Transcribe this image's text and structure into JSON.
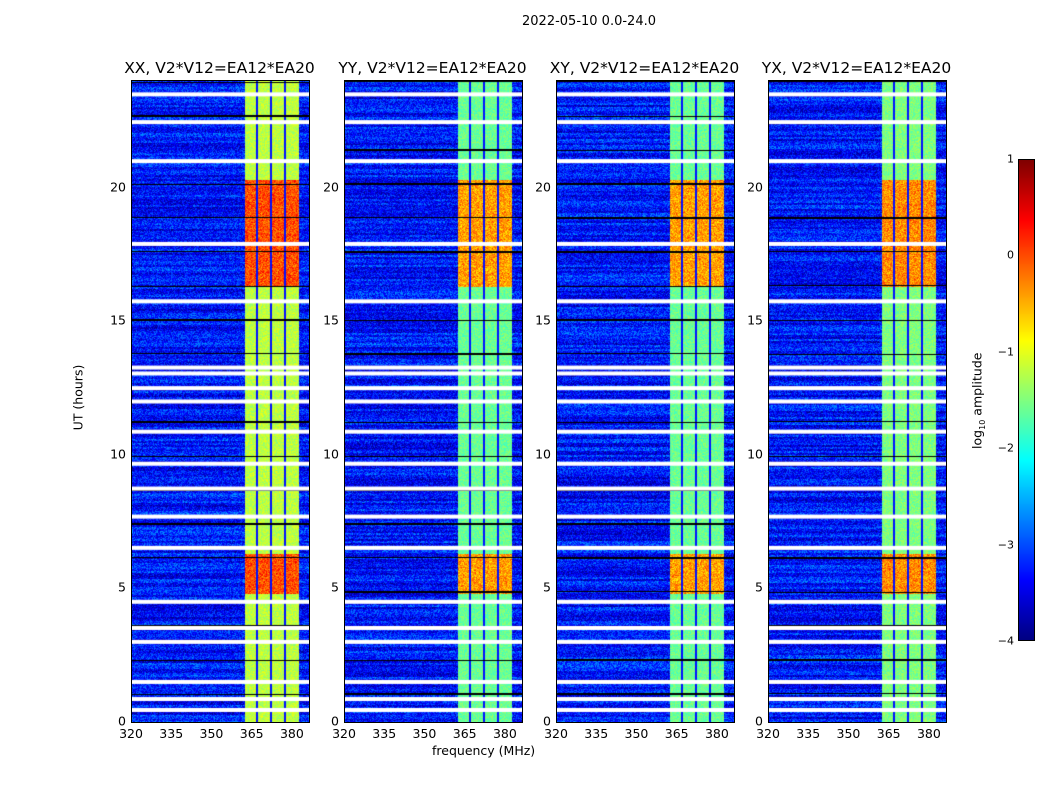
{
  "figure_title": "2022-05-10 0.0-24.0",
  "chart_data": {
    "type": "heatmap",
    "title": "2022-05-10 0.0-24.0",
    "xlabel": "frequency (MHz)",
    "ylabel": "UT (hours)",
    "xlim": [
      320,
      386
    ],
    "ylim": [
      0,
      24
    ],
    "xticks": [
      "320",
      "335",
      "350",
      "365",
      "380"
    ],
    "xtick_values": [
      320,
      335,
      350,
      365,
      380
    ],
    "yticks": [
      "0",
      "5",
      "10",
      "15",
      "20"
    ],
    "ytick_values": [
      0,
      5,
      10,
      15,
      20
    ],
    "colormap": "jet",
    "clim": [
      -4,
      1
    ],
    "colorbar": {
      "label_prefix": "log",
      "label_sub": "10",
      "label_suffix": " amplitude",
      "ticks": [
        "1",
        "0",
        "−1",
        "−2",
        "−3",
        "−4"
      ],
      "tick_values": [
        1,
        0,
        -1,
        -2,
        -3,
        -4
      ]
    },
    "panels": [
      {
        "title": "XX, V2*V12=EA12*EA20",
        "band_level": -1.2
      },
      {
        "title": "YY, V2*V12=EA12*EA20",
        "band_level": -1.6
      },
      {
        "title": "XY, V2*V12=EA12*EA20",
        "band_level": -1.6
      },
      {
        "title": "YX, V2*V12=EA12*EA20",
        "band_level": -1.5
      }
    ],
    "background_level": -3.3,
    "rfi_band_mhz": [
      361.8,
      382
    ],
    "rfi_subband_edges_mhz": [
      366.6,
      371.8,
      377
    ],
    "strong_rfi_hours": [
      [
        16.3,
        20.3
      ],
      [
        4.8,
        6.3
      ]
    ],
    "flagged_hours": [
      23.5,
      22.46,
      21.0,
      17.9,
      15.75,
      13.27,
      13.05,
      12.5,
      12.0,
      10.87,
      9.67,
      8.74,
      7.69,
      6.52,
      4.5,
      3.52,
      3.0,
      1.5,
      0.86,
      0.45
    ]
  }
}
